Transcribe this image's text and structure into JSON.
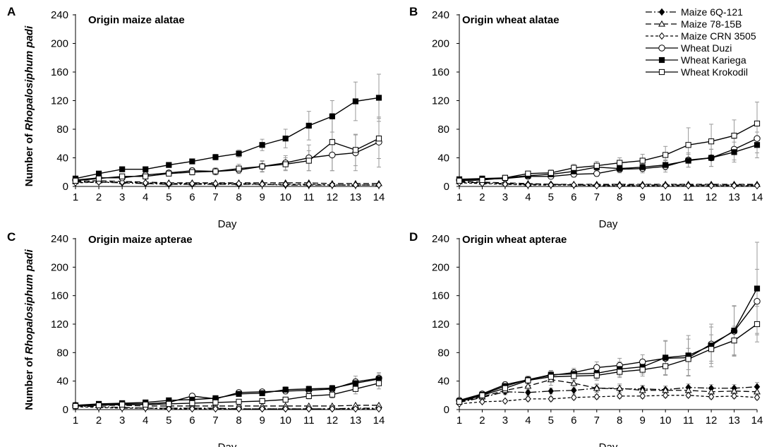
{
  "chart_data": [
    {
      "type": "line",
      "panel_label": "A",
      "title": "Origin maize alatae",
      "xlabel": "",
      "ylabel": "Number of Rhopalosiphum padi",
      "ylabel_parts": [
        "Number of ",
        "Rhopalosiphum padi"
      ],
      "x": [
        1,
        2,
        3,
        4,
        5,
        6,
        7,
        8,
        9,
        10,
        11,
        12,
        13,
        14
      ],
      "xlim": [
        1,
        14
      ],
      "ylim": [
        0,
        240
      ],
      "yticks": [
        0,
        40,
        80,
        120,
        160,
        200,
        240
      ],
      "grid": false,
      "series": [
        {
          "name": "Maize 6Q-121",
          "values": [
            6,
            6,
            5,
            4,
            3,
            3,
            3,
            3,
            3,
            2,
            2,
            2,
            2,
            2
          ]
        },
        {
          "name": "Maize 78-15B",
          "values": [
            7,
            8,
            7,
            6,
            5,
            5,
            5,
            5,
            5,
            5,
            5,
            4,
            4,
            4
          ]
        },
        {
          "name": "Maize CRN 3505",
          "values": [
            5,
            6,
            6,
            5,
            4,
            4,
            4,
            4,
            3,
            3,
            3,
            2,
            2,
            2
          ]
        },
        {
          "name": "Wheat Duzi",
          "values": [
            9,
            12,
            12,
            16,
            19,
            22,
            21,
            23,
            28,
            33,
            40,
            44,
            47,
            62
          ]
        },
        {
          "name": "Wheat Kariega",
          "values": [
            11,
            18,
            24,
            24,
            30,
            35,
            41,
            46,
            58,
            67,
            85,
            98,
            119,
            124
          ]
        },
        {
          "name": "Wheat Krokodil",
          "values": [
            8,
            11,
            14,
            14,
            18,
            20,
            21,
            25,
            28,
            31,
            36,
            62,
            51,
            67
          ]
        }
      ],
      "error": [
        [
          1,
          1,
          1,
          1,
          1,
          1,
          1,
          1,
          1,
          1,
          1,
          1,
          1,
          1
        ],
        [
          1,
          1,
          1,
          1,
          1,
          1,
          1,
          1,
          1,
          1,
          1,
          1,
          1,
          1
        ],
        [
          1,
          1,
          1,
          1,
          1,
          1,
          1,
          1,
          1,
          1,
          1,
          1,
          1,
          1
        ],
        [
          2,
          2,
          2,
          3,
          3,
          4,
          4,
          5,
          7,
          10,
          18,
          22,
          25,
          35
        ],
        [
          2,
          2,
          3,
          3,
          3,
          3,
          4,
          5,
          8,
          13,
          20,
          22,
          27,
          33
        ],
        [
          2,
          2,
          2,
          3,
          3,
          4,
          5,
          6,
          8,
          9,
          14,
          40,
          22,
          28
        ]
      ]
    },
    {
      "type": "line",
      "panel_label": "B",
      "title": "Origin wheat alatae",
      "xlabel": "",
      "ylabel": "",
      "x": [
        1,
        2,
        3,
        4,
        5,
        6,
        7,
        8,
        9,
        10,
        11,
        12,
        13,
        14
      ],
      "xlim": [
        1,
        14
      ],
      "ylim": [
        0,
        240
      ],
      "yticks": [
        0,
        40,
        80,
        120,
        160,
        200,
        240
      ],
      "grid": false,
      "legend": "top-right",
      "series": [
        {
          "name": "Maize 6Q-121",
          "values": [
            6,
            5,
            4,
            3,
            3,
            2,
            2,
            2,
            2,
            2,
            2,
            2,
            2,
            2
          ]
        },
        {
          "name": "Maize 78-15B",
          "values": [
            7,
            6,
            5,
            4,
            3,
            3,
            3,
            3,
            3,
            3,
            3,
            3,
            3,
            3
          ]
        },
        {
          "name": "Maize CRN 3505",
          "values": [
            5,
            4,
            3,
            2,
            2,
            2,
            1,
            1,
            1,
            1,
            1,
            1,
            1,
            1
          ]
        },
        {
          "name": "Wheat Duzi",
          "values": [
            9,
            10,
            11,
            14,
            14,
            17,
            18,
            24,
            25,
            28,
            37,
            40,
            52,
            67
          ]
        },
        {
          "name": "Wheat Kariega",
          "values": [
            10,
            11,
            12,
            15,
            17,
            21,
            27,
            25,
            27,
            30,
            36,
            40,
            48,
            58
          ]
        },
        {
          "name": "Wheat Krokodil",
          "values": [
            8,
            9,
            12,
            18,
            19,
            26,
            29,
            33,
            36,
            44,
            58,
            63,
            71,
            88
          ]
        }
      ],
      "error": [
        [
          1,
          1,
          1,
          1,
          1,
          1,
          1,
          1,
          1,
          1,
          1,
          1,
          1,
          1
        ],
        [
          1,
          1,
          1,
          1,
          1,
          1,
          1,
          1,
          1,
          1,
          1,
          1,
          1,
          1
        ],
        [
          1,
          1,
          1,
          1,
          1,
          1,
          1,
          1,
          1,
          1,
          1,
          1,
          1,
          1
        ],
        [
          2,
          2,
          2,
          3,
          3,
          4,
          4,
          5,
          6,
          8,
          10,
          12,
          15,
          20
        ],
        [
          2,
          2,
          2,
          3,
          3,
          4,
          4,
          5,
          6,
          7,
          9,
          12,
          14,
          18
        ],
        [
          2,
          2,
          2,
          3,
          4,
          5,
          6,
          7,
          9,
          12,
          24,
          24,
          22,
          30
        ]
      ]
    },
    {
      "type": "line",
      "panel_label": "C",
      "title": "Origin maize apterae",
      "xlabel": "",
      "ylabel": "Number of Rhopalosiphum padi",
      "ylabel_parts": [
        "Number of ",
        "Rhopalosiphum padi"
      ],
      "x": [
        1,
        2,
        3,
        4,
        5,
        6,
        7,
        8,
        9,
        10,
        11,
        12,
        13,
        14
      ],
      "xlim": [
        1,
        14
      ],
      "ylim": [
        0,
        240
      ],
      "yticks": [
        0,
        40,
        80,
        120,
        160,
        200,
        240
      ],
      "grid": false,
      "series": [
        {
          "name": "Maize 6Q-121",
          "values": [
            5,
            4,
            3,
            2,
            2,
            2,
            2,
            1,
            1,
            1,
            1,
            1,
            2,
            2
          ]
        },
        {
          "name": "Maize 78-15B",
          "values": [
            6,
            6,
            6,
            5,
            5,
            5,
            5,
            5,
            5,
            5,
            5,
            5,
            6,
            6
          ]
        },
        {
          "name": "Maize CRN 3505",
          "values": [
            4,
            3,
            2,
            2,
            1,
            1,
            1,
            1,
            1,
            1,
            1,
            1,
            1,
            1
          ]
        },
        {
          "name": "Wheat Duzi",
          "values": [
            6,
            7,
            8,
            8,
            10,
            19,
            15,
            24,
            25,
            26,
            27,
            29,
            39,
            44
          ]
        },
        {
          "name": "Wheat Kariega",
          "values": [
            6,
            8,
            9,
            10,
            13,
            14,
            16,
            22,
            23,
            28,
            29,
            30,
            37,
            43
          ]
        },
        {
          "name": "Wheat Krokodil",
          "values": [
            5,
            6,
            7,
            7,
            8,
            9,
            10,
            11,
            12,
            14,
            19,
            21,
            29,
            37
          ]
        }
      ],
      "error": [
        [
          1,
          1,
          1,
          1,
          1,
          1,
          1,
          1,
          1,
          1,
          1,
          1,
          1,
          1
        ],
        [
          1,
          1,
          1,
          1,
          1,
          1,
          1,
          1,
          1,
          1,
          1,
          1,
          1,
          1
        ],
        [
          1,
          1,
          1,
          1,
          1,
          1,
          1,
          1,
          1,
          1,
          1,
          1,
          1,
          1
        ],
        [
          1,
          1,
          2,
          2,
          2,
          3,
          3,
          3,
          3,
          4,
          4,
          5,
          8,
          8
        ],
        [
          1,
          1,
          2,
          2,
          2,
          3,
          3,
          3,
          3,
          4,
          4,
          4,
          6,
          7
        ],
        [
          1,
          1,
          1,
          2,
          2,
          2,
          2,
          3,
          3,
          3,
          4,
          5,
          7,
          8
        ]
      ]
    },
    {
      "type": "line",
      "panel_label": "D",
      "title": "Origin wheat apterae",
      "xlabel": "",
      "ylabel": "",
      "x": [
        1,
        2,
        3,
        4,
        5,
        6,
        7,
        8,
        9,
        10,
        11,
        12,
        13,
        14
      ],
      "xlim": [
        1,
        14
      ],
      "ylim": [
        0,
        240
      ],
      "yticks": [
        0,
        40,
        80,
        120,
        160,
        200,
        240
      ],
      "grid": false,
      "series": [
        {
          "name": "Maize 6Q-121",
          "values": [
            10,
            17,
            25,
            24,
            26,
            27,
            30,
            29,
            29,
            28,
            31,
            30,
            30,
            32
          ]
        },
        {
          "name": "Maize 78-15B",
          "values": [
            11,
            18,
            27,
            33,
            42,
            37,
            30,
            30,
            27,
            27,
            27,
            25,
            26,
            25
          ]
        },
        {
          "name": "Maize CRN 3505",
          "values": [
            8,
            11,
            12,
            15,
            15,
            17,
            18,
            19,
            19,
            20,
            20,
            18,
            19,
            17
          ]
        },
        {
          "name": "Wheat Duzi",
          "values": [
            13,
            22,
            35,
            42,
            48,
            52,
            59,
            62,
            67,
            72,
            73,
            92,
            110,
            152
          ]
        },
        {
          "name": "Wheat Kariega",
          "values": [
            12,
            21,
            33,
            42,
            49,
            50,
            51,
            57,
            60,
            73,
            76,
            90,
            111,
            170
          ]
        },
        {
          "name": "Wheat Krokodil",
          "values": [
            11,
            20,
            30,
            41,
            46,
            47,
            48,
            53,
            56,
            61,
            71,
            85,
            97,
            120
          ]
        }
      ],
      "error": [
        [
          2,
          3,
          4,
          4,
          4,
          5,
          5,
          5,
          5,
          5,
          5,
          5,
          5,
          6
        ],
        [
          2,
          3,
          5,
          6,
          8,
          7,
          6,
          6,
          6,
          6,
          6,
          6,
          6,
          6
        ],
        [
          1,
          2,
          2,
          3,
          3,
          3,
          3,
          3,
          3,
          3,
          3,
          3,
          3,
          3
        ],
        [
          2,
          3,
          4,
          5,
          6,
          6,
          8,
          10,
          10,
          24,
          26,
          24,
          35,
          45
        ],
        [
          2,
          3,
          4,
          5,
          6,
          6,
          8,
          10,
          10,
          24,
          28,
          30,
          35,
          65
        ],
        [
          2,
          3,
          4,
          5,
          6,
          6,
          7,
          8,
          9,
          12,
          15,
          20,
          20,
          25
        ]
      ]
    }
  ],
  "shared": {
    "xlabel": "Day",
    "legend": [
      "Maize 6Q-121",
      "Maize 78-15B",
      "Maize CRN 3505",
      "Wheat Duzi",
      "Wheat Kariega",
      "Wheat Krokodil"
    ],
    "colors": {
      "line": "#000000",
      "errorbar": "#999999",
      "background": "#ffffff"
    },
    "markers": [
      "filled-diamond",
      "open-triangle",
      "open-diamond",
      "open-circle",
      "filled-square",
      "open-square"
    ],
    "dashes": [
      "dash-dot",
      "long-dash",
      "short-dash",
      "solid",
      "solid",
      "solid"
    ]
  }
}
